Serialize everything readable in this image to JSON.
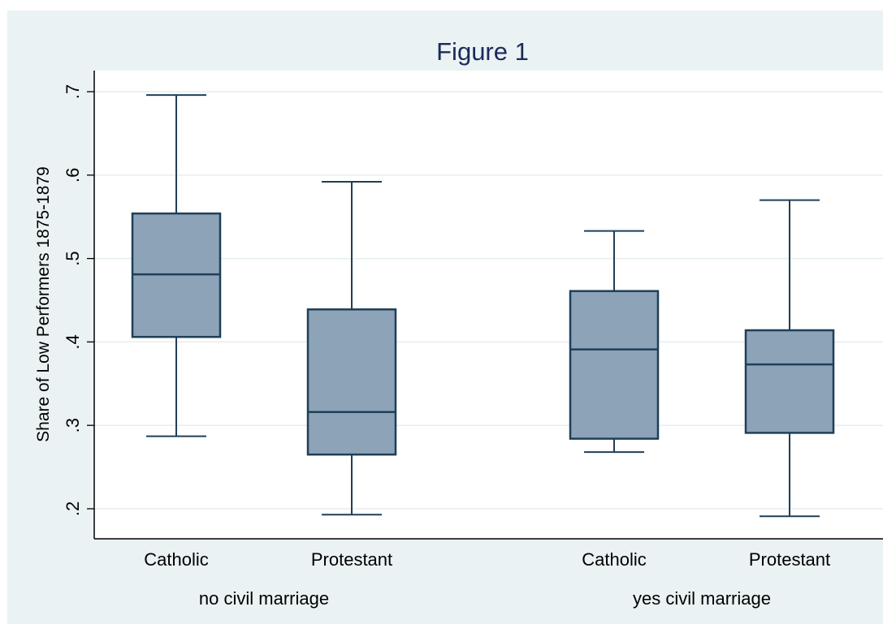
{
  "chart_data": {
    "type": "box",
    "title": "Figure 1",
    "ylabel": "Share of Low Performers 1875-1879",
    "xlabel": "",
    "ylim": [
      0.18,
      0.72
    ],
    "yticks": [
      0.2,
      0.3,
      0.4,
      0.5,
      0.6,
      0.7
    ],
    "ytick_labels": [
      ".2",
      ".3",
      ".4",
      ".5",
      ".6",
      ".7"
    ],
    "grid": true,
    "groups": [
      {
        "label": "no civil marriage",
        "boxes": [
          {
            "label": "Catholic",
            "whisker_low": 0.287,
            "q1": 0.406,
            "median": 0.481,
            "q3": 0.554,
            "whisker_high": 0.696
          },
          {
            "label": "Protestant",
            "whisker_low": 0.193,
            "q1": 0.265,
            "median": 0.316,
            "q3": 0.439,
            "whisker_high": 0.592
          }
        ]
      },
      {
        "label": "yes civil marriage",
        "boxes": [
          {
            "label": "Catholic",
            "whisker_low": 0.268,
            "q1": 0.284,
            "median": 0.391,
            "q3": 0.461,
            "whisker_high": 0.533
          },
          {
            "label": "Protestant",
            "whisker_low": 0.191,
            "q1": 0.291,
            "median": 0.373,
            "q3": 0.414,
            "whisker_high": 0.57
          }
        ]
      }
    ],
    "colors": {
      "background": "#eaf2f3",
      "plot_background": "#ffffff",
      "box_fill": "#8ca3b8",
      "box_stroke": "#1f3f58",
      "grid": "#e6eef0",
      "title": "#1b2a5a"
    }
  }
}
